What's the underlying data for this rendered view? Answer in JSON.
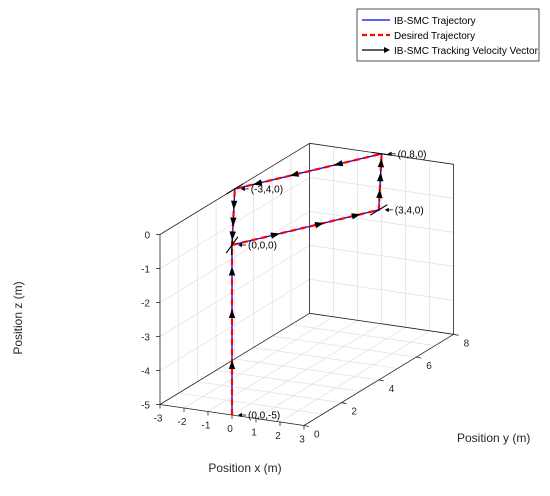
{
  "chart_data": {
    "type": "line3d",
    "title": "",
    "xlabel": "Position x (m)",
    "ylabel": "Position y (m)",
    "zlabel": "Position z (m)",
    "xlim": [
      -3,
      3
    ],
    "ylim": [
      0,
      8
    ],
    "zlim": [
      -5,
      0
    ],
    "xticks": [
      "-3",
      "-2",
      "-1",
      "0",
      "1",
      "2",
      "3"
    ],
    "yticks": [
      "0",
      "2",
      "4",
      "6",
      "8"
    ],
    "zticks": [
      "0",
      "-1",
      "-2",
      "-3",
      "-4",
      "-5"
    ],
    "grid": true,
    "legend_position": "top-right",
    "series": [
      {
        "name": "IB-SMC Trajectory",
        "color": "#0000ff",
        "style": "solid",
        "points": [
          [
            0,
            0,
            -5
          ],
          [
            0,
            0,
            0
          ],
          [
            3,
            4,
            0
          ],
          [
            0,
            8,
            0
          ],
          [
            -3,
            4,
            0
          ],
          [
            0,
            0,
            0
          ]
        ]
      },
      {
        "name": "Desired Trajectory",
        "color": "#ff0000",
        "style": "dashed",
        "points": [
          [
            0,
            0,
            -5
          ],
          [
            0,
            0,
            0
          ],
          [
            3,
            4,
            0
          ],
          [
            0,
            8,
            0
          ],
          [
            -3,
            4,
            0
          ],
          [
            0,
            0,
            0
          ]
        ]
      },
      {
        "name": "IB-SMC Tracking Velocity Vector",
        "color": "#000000",
        "style": "arrow"
      }
    ],
    "annotations": [
      {
        "text": "(0,0,-5)",
        "point": [
          0,
          0,
          -5
        ]
      },
      {
        "text": "(0,0,0)",
        "point": [
          0,
          0,
          0
        ]
      },
      {
        "text": "(3,4,0)",
        "point": [
          3,
          4,
          0
        ]
      },
      {
        "text": "(0,8,0)",
        "point": [
          0,
          8,
          0
        ]
      },
      {
        "text": "(-3,4,0)",
        "point": [
          -3,
          4,
          0
        ]
      }
    ]
  }
}
